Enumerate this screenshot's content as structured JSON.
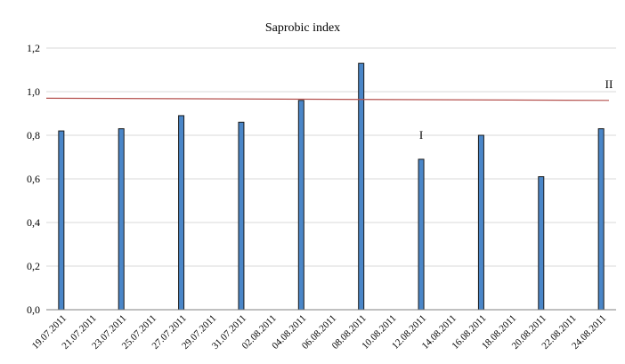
{
  "chart_data": {
    "type": "bar",
    "title": "Saprobic index",
    "xlabel": "",
    "ylabel": "",
    "ylim": [
      0,
      1.2
    ],
    "yticks": [
      "0,0",
      "0,2",
      "0,4",
      "0,6",
      "0,8",
      "1,0",
      "1,2"
    ],
    "categories": [
      "19.07.2011",
      "21.07.2011",
      "23.07.2011",
      "25.07.2011",
      "27.07.2011",
      "29.07.2011",
      "31.07.2011",
      "02.08.2011",
      "04.08.2011",
      "06.08.2011",
      "08.08.2011",
      "10.08.2011",
      "12.08.2011",
      "14.08.2011",
      "16.08.2011",
      "18.08.2011",
      "20.08.2011",
      "22.08.2011",
      "24.08.2011"
    ],
    "series": [
      {
        "values": [
          0.82,
          null,
          0.83,
          null,
          0.89,
          null,
          0.86,
          null,
          0.96,
          null,
          1.13,
          null,
          0.69,
          null,
          0.8,
          null,
          0.61,
          null,
          0.83
        ],
        "color": "#4a86c8"
      }
    ],
    "reference_line": {
      "label": "II",
      "start": 0.97,
      "end": 0.96,
      "color": "#b5524f"
    },
    "annotations": [
      {
        "text": "I",
        "x": "12.08.2011",
        "y": 0.8
      }
    ],
    "grid": true
  }
}
